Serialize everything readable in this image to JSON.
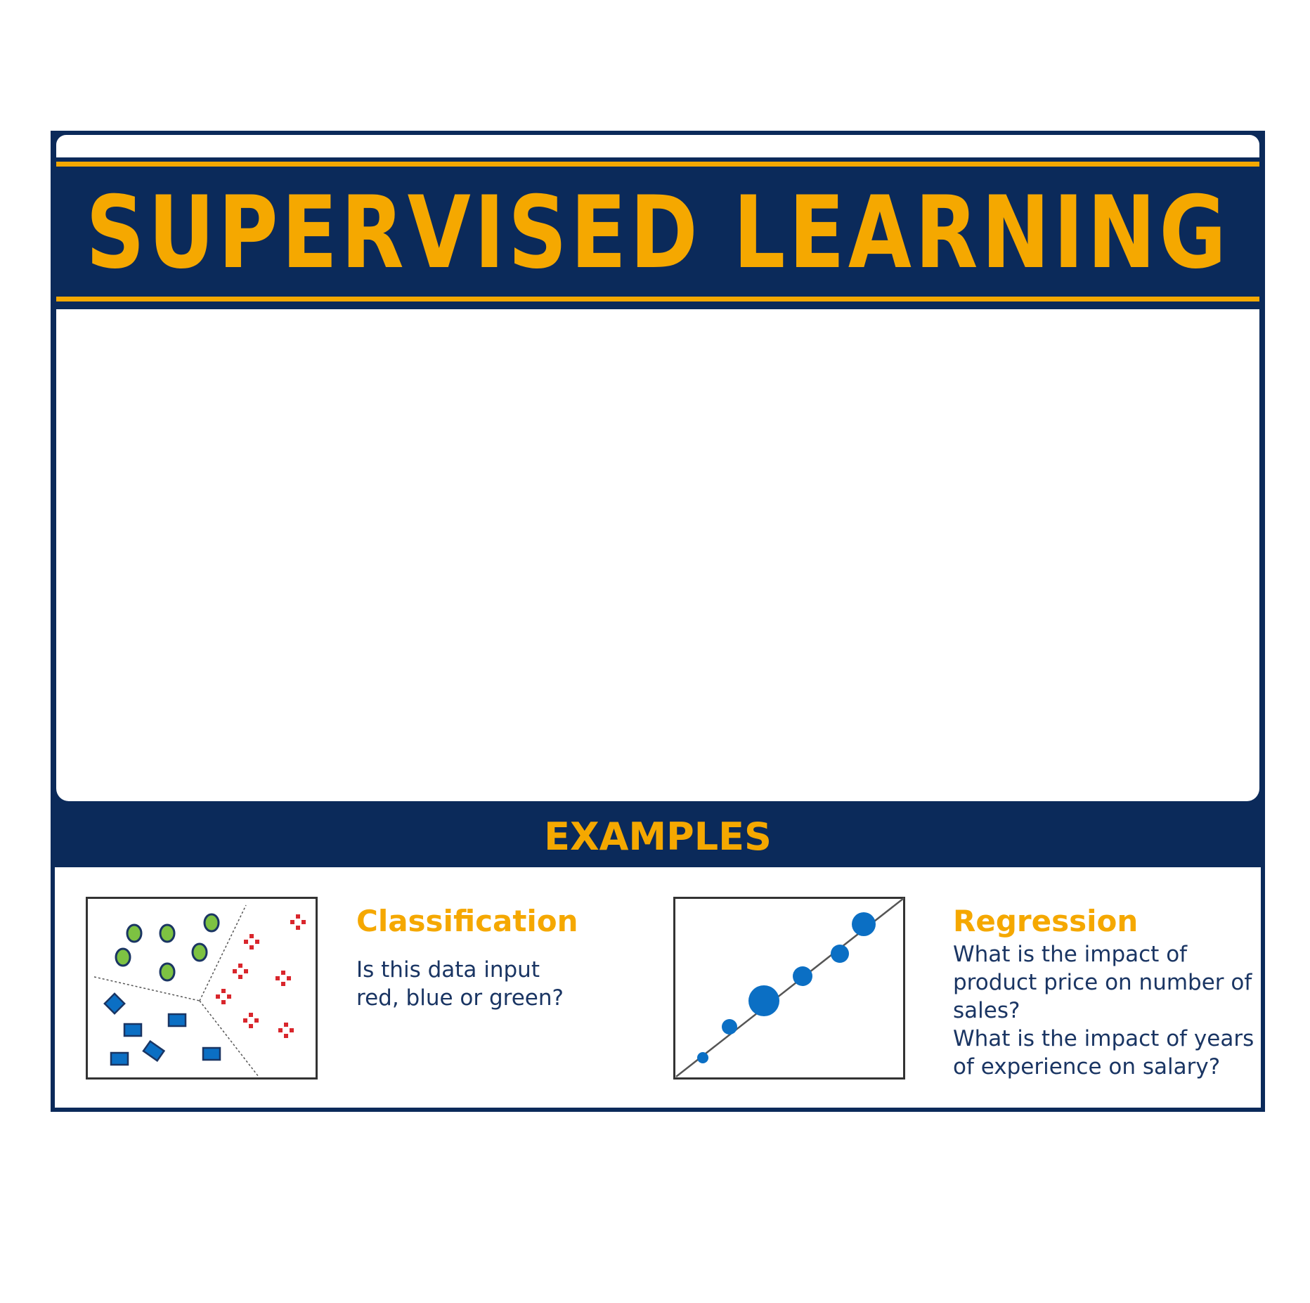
{
  "title": "SUPERVISED LEARNING",
  "examples_heading": "EXAMPLES",
  "classification": {
    "heading": "Classification",
    "lines": [
      "Is this data input",
      "red, blue or green?"
    ],
    "icons": [
      "green-circle-icon",
      "red-cross-icon",
      "blue-square-icon"
    ]
  },
  "regression": {
    "heading": "Regression",
    "lines": [
      "What is the impact of",
      "product price on number of",
      "sales?",
      "What is the impact of years",
      "of experience on salary?"
    ]
  },
  "colors": {
    "navy": "#0b2a5a",
    "gold": "#f5a800",
    "text": "#1a3563",
    "green": "#7dc242",
    "red": "#d9262c",
    "blue": "#0b6fc4"
  }
}
